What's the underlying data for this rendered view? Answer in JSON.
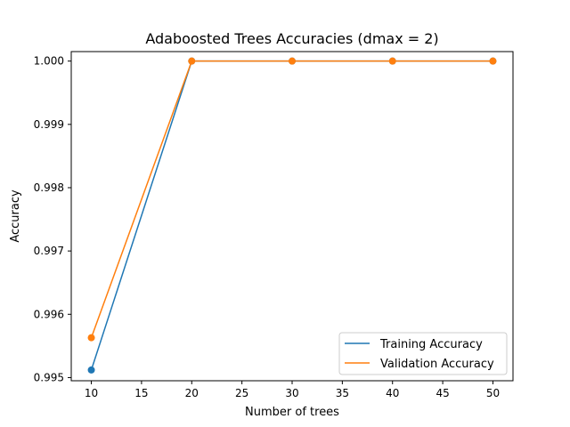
{
  "chart_data": {
    "type": "line",
    "title": "Adaboosted Trees Accuracies (dmax = 2)",
    "xlabel": "Number of trees",
    "ylabel": "Accuracy",
    "x": [
      10,
      20,
      30,
      40,
      50
    ],
    "xlim": [
      8,
      52
    ],
    "ylim": [
      0.99495,
      1.00015
    ],
    "x_ticks": [
      10,
      15,
      20,
      25,
      30,
      35,
      40,
      45,
      50
    ],
    "x_tick_labels": [
      "10",
      "15",
      "20",
      "25",
      "30",
      "35",
      "40",
      "45",
      "50"
    ],
    "y_ticks": [
      0.995,
      0.996,
      0.997,
      0.998,
      0.999,
      1.0
    ],
    "y_tick_labels": [
      "0.995",
      "0.996",
      "0.997",
      "0.998",
      "0.999",
      "1.000"
    ],
    "grid": false,
    "legend_position": "lower-right",
    "series": [
      {
        "name": "Training Accuracy",
        "color": "#1f77b4",
        "values": [
          0.99512,
          1.0,
          1.0,
          1.0,
          1.0
        ]
      },
      {
        "name": "Validation Accuracy",
        "color": "#ff7f0e",
        "values": [
          0.99563,
          1.0,
          1.0,
          1.0,
          1.0
        ]
      }
    ]
  }
}
